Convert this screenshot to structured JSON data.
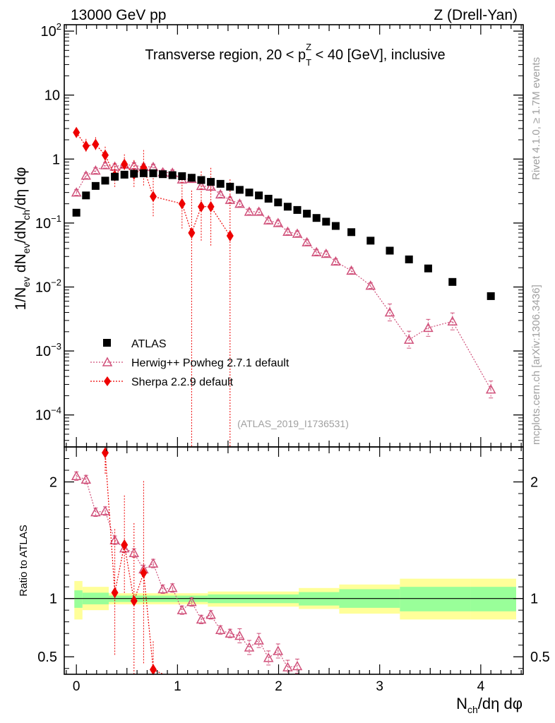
{
  "header": {
    "left": "13000 GeV pp",
    "right": "Z (Drell-Yan)"
  },
  "side_labels": {
    "rivet": "Rivet 4.1.0, ≥ 1.7M events",
    "mcplots": "mcplots.cern.ch [arXiv:1306.3436]"
  },
  "colors": {
    "data": "#000000",
    "herwig": "#d0507a",
    "sherpa": "#ee0000",
    "band_inner": "#99ff99",
    "band_outer": "#ffff99"
  },
  "chart_data": {
    "type": "scatter",
    "title": "Transverse region, 20 < p_T^Z < 40 [GeV], inclusive",
    "title_parts": {
      "pre": "Transverse region, 20 < p",
      "sub": "T",
      "sup": "Z",
      "post": " < 40 [GeV], inclusive"
    },
    "analysis_tag": "(ATLAS_2019_I1736531)",
    "xlabel": "N_ch/dη dφ",
    "ylabel": "1/N_ev dN_ev/dN_ch/dη dφ",
    "xlabel_parts": {
      "pre": "N",
      "sub": "ch",
      "post": "/dη dφ"
    },
    "ylabel_parts": [
      "1/N",
      "ev",
      " dN",
      "ev",
      "/dN",
      "ch",
      "/dη dφ"
    ],
    "ratio_ylabel": "Ratio to ATLAS",
    "xlim": [
      -0.12,
      4.42
    ],
    "ylim_log": [
      -4.5,
      2.1
    ],
    "ratio_ylim": [
      0.35,
      2.3
    ],
    "x_ticks": [
      0,
      1,
      2,
      3,
      4
    ],
    "x_tick_labels": [
      "0",
      "1",
      "2",
      "3",
      "4"
    ],
    "y_ticks": [
      {
        "exp": 2,
        "label": "10",
        "sup": "2"
      },
      {
        "exp": 1,
        "label": "10",
        "sup": ""
      },
      {
        "exp": 0,
        "label": "1",
        "sup": ""
      },
      {
        "exp": -1,
        "label": "10",
        "sup": "−1"
      },
      {
        "exp": -2,
        "label": "10",
        "sup": "−2"
      },
      {
        "exp": -3,
        "label": "10",
        "sup": "−3"
      },
      {
        "exp": -4,
        "label": "10",
        "sup": "−4"
      }
    ],
    "ratio_ticks": [
      {
        "v": 0.5,
        "label": "0.5"
      },
      {
        "v": 1,
        "label": "1"
      },
      {
        "v": 2,
        "label": "2"
      }
    ],
    "legend": [
      {
        "key": "atlas",
        "label": "ATLAS"
      },
      {
        "key": "herwig",
        "label": "Herwig++ Powheg 2.7.1 default"
      },
      {
        "key": "sherpa",
        "label": "Sherpa 2.2.9 default"
      }
    ],
    "series": [
      {
        "name": "ATLAS",
        "key": "atlas",
        "x": [
          0.0,
          0.095,
          0.19,
          0.285,
          0.38,
          0.475,
          0.57,
          0.665,
          0.76,
          0.855,
          0.95,
          1.045,
          1.14,
          1.235,
          1.33,
          1.425,
          1.52,
          1.615,
          1.71,
          1.805,
          1.9,
          1.995,
          2.09,
          2.185,
          2.28,
          2.375,
          2.47,
          2.565,
          2.72,
          2.91,
          3.1,
          3.29,
          3.48,
          3.72,
          4.1
        ],
        "y": [
          0.145,
          0.27,
          0.38,
          0.46,
          0.53,
          0.57,
          0.59,
          0.6,
          0.6,
          0.58,
          0.56,
          0.54,
          0.51,
          0.47,
          0.44,
          0.41,
          0.37,
          0.33,
          0.3,
          0.27,
          0.24,
          0.21,
          0.18,
          0.16,
          0.14,
          0.12,
          0.105,
          0.09,
          0.072,
          0.053,
          0.037,
          0.027,
          0.0195,
          0.012,
          0.0072
        ]
      },
      {
        "name": "Herwig++ Powheg 2.7.1 default",
        "key": "herwig",
        "x": [
          0.0,
          0.095,
          0.19,
          0.285,
          0.38,
          0.475,
          0.57,
          0.665,
          0.76,
          0.855,
          0.95,
          1.045,
          1.14,
          1.235,
          1.33,
          1.425,
          1.52,
          1.615,
          1.71,
          1.805,
          1.9,
          1.995,
          2.09,
          2.185,
          2.28,
          2.375,
          2.47,
          2.565,
          2.72,
          2.91,
          3.1,
          3.29,
          3.48,
          3.72,
          4.1
        ],
        "y": [
          0.3,
          0.55,
          0.66,
          0.8,
          0.76,
          0.82,
          0.79,
          0.76,
          0.75,
          0.62,
          0.61,
          0.48,
          0.49,
          0.38,
          0.37,
          0.28,
          0.23,
          0.2,
          0.15,
          0.15,
          0.11,
          0.1,
          0.073,
          0.068,
          0.05,
          0.035,
          0.033,
          0.025,
          0.018,
          0.0105,
          0.004,
          0.0015,
          0.0023,
          0.0029,
          0.00025
        ]
      },
      {
        "name": "Sherpa 2.2.9 default",
        "key": "sherpa",
        "x": [
          0.0,
          0.095,
          0.19,
          0.285,
          0.38,
          0.475,
          0.57,
          0.665,
          0.76,
          1.045,
          1.14,
          1.235,
          1.33,
          1.52
        ],
        "y": [
          2.6,
          1.6,
          1.7,
          1.15,
          0.55,
          0.83,
          0.58,
          0.73,
          0.26,
          0.2,
          0.07,
          0.18,
          0.18,
          0.063
        ]
      }
    ],
    "ratio": {
      "herwig": [
        2.05,
        2.02,
        1.74,
        1.75,
        1.5,
        1.43,
        1.39,
        1.25,
        1.3,
        1.08,
        1.09,
        0.9,
        0.97,
        0.82,
        0.86,
        0.73,
        0.7,
        0.68,
        0.58,
        0.64,
        0.49,
        0.55,
        0.41,
        0.42
      ],
      "sherpa": [
        {
          "x": 0.285,
          "y": 2.25
        },
        {
          "x": 0.38,
          "y": 1.05
        },
        {
          "x": 0.475,
          "y": 1.46
        },
        {
          "x": 0.57,
          "y": 0.98
        },
        {
          "x": 0.665,
          "y": 1.22
        },
        {
          "x": 0.76,
          "y": 0.39
        }
      ],
      "band_inner": [
        {
          "x0": -0.02,
          "x1": 0.06,
          "lo": 0.92,
          "hi": 1.07
        },
        {
          "x0": 0.06,
          "x1": 0.32,
          "lo": 0.95,
          "hi": 1.05
        },
        {
          "x0": 0.32,
          "x1": 1.3,
          "lo": 0.97,
          "hi": 1.025
        },
        {
          "x0": 1.3,
          "x1": 2.2,
          "lo": 0.96,
          "hi": 1.035
        },
        {
          "x0": 2.2,
          "x1": 2.6,
          "lo": 0.94,
          "hi": 1.055
        },
        {
          "x0": 2.6,
          "x1": 3.2,
          "lo": 0.92,
          "hi": 1.08
        },
        {
          "x0": 3.2,
          "x1": 3.9,
          "lo": 0.89,
          "hi": 1.1
        },
        {
          "x0": 3.9,
          "x1": 4.35,
          "lo": 0.89,
          "hi": 1.1
        }
      ],
      "band_outer": [
        {
          "x0": -0.02,
          "x1": 0.06,
          "lo": 0.82,
          "hi": 1.15
        },
        {
          "x0": 0.06,
          "x1": 0.32,
          "lo": 0.9,
          "hi": 1.1
        },
        {
          "x0": 0.32,
          "x1": 1.3,
          "lo": 0.95,
          "hi": 1.045
        },
        {
          "x0": 1.3,
          "x1": 2.2,
          "lo": 0.93,
          "hi": 1.06
        },
        {
          "x0": 2.2,
          "x1": 2.6,
          "lo": 0.91,
          "hi": 1.09
        },
        {
          "x0": 2.6,
          "x1": 3.2,
          "lo": 0.87,
          "hi": 1.12
        },
        {
          "x0": 3.2,
          "x1": 3.9,
          "lo": 0.82,
          "hi": 1.17
        },
        {
          "x0": 3.9,
          "x1": 4.35,
          "lo": 0.82,
          "hi": 1.17
        }
      ]
    }
  }
}
